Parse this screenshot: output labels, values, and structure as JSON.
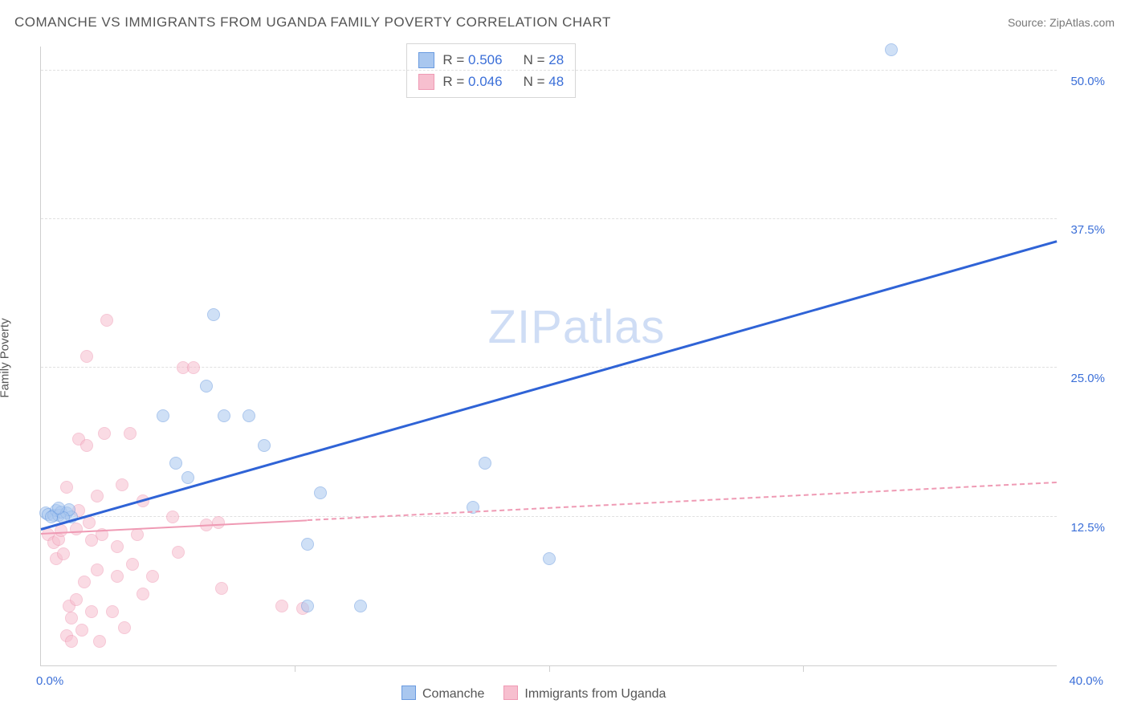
{
  "header": {
    "title": "COMANCHE VS IMMIGRANTS FROM UGANDA FAMILY POVERTY CORRELATION CHART",
    "source_prefix": "Source: ",
    "source_link": "ZipAtlas.com"
  },
  "ylabel": "Family Poverty",
  "watermark": {
    "part1": "ZIP",
    "part2": "atlas"
  },
  "chart": {
    "type": "scatter",
    "background_color": "#ffffff",
    "grid_color": "#e0e0e0",
    "axis_color": "#cfcfcf",
    "tick_label_color": "#3b6fd8",
    "xlim": [
      0,
      40
    ],
    "ylim": [
      0,
      52
    ],
    "xticks": [
      0,
      40
    ],
    "xtick_marks_only": [
      10,
      20,
      30
    ],
    "xtick_labels": [
      "0.0%",
      "40.0%"
    ],
    "yticks": [
      12.5,
      25.0,
      37.5,
      50.0
    ],
    "ytick_labels": [
      "12.5%",
      "25.0%",
      "37.5%",
      "50.0%"
    ],
    "series": [
      {
        "id": "comanche",
        "name": "Comanche",
        "color_fill": "#a9c7ef",
        "color_stroke": "#6a9be0",
        "marker_radius": 8,
        "fill_opacity": 0.55,
        "R": "0.506",
        "N": "28",
        "trend": {
          "style": "solid",
          "color": "#2f63d6",
          "width": 3,
          "x1": 0,
          "y1": 11.3,
          "x2": 40,
          "y2": 35.5,
          "dash_after_x": null
        },
        "points": [
          [
            0.2,
            12.8
          ],
          [
            0.3,
            12.7
          ],
          [
            0.5,
            12.6
          ],
          [
            0.6,
            13.0
          ],
          [
            0.7,
            12.6
          ],
          [
            0.8,
            12.9
          ],
          [
            0.4,
            12.5
          ],
          [
            1.0,
            12.8
          ],
          [
            1.2,
            12.5
          ],
          [
            1.1,
            13.1
          ],
          [
            0.9,
            12.4
          ],
          [
            0.7,
            13.2
          ],
          [
            5.8,
            15.8
          ],
          [
            4.8,
            21.0
          ],
          [
            5.3,
            17.0
          ],
          [
            6.5,
            23.5
          ],
          [
            7.2,
            21.0
          ],
          [
            8.2,
            21.0
          ],
          [
            6.8,
            29.5
          ],
          [
            8.8,
            18.5
          ],
          [
            10.5,
            10.2
          ],
          [
            10.5,
            5.0
          ],
          [
            11.0,
            14.5
          ],
          [
            12.6,
            5.0
          ],
          [
            17.0,
            13.3
          ],
          [
            17.5,
            17.0
          ],
          [
            20.0,
            9.0
          ],
          [
            33.5,
            51.7
          ]
        ]
      },
      {
        "id": "uganda",
        "name": "Immigrants from Uganda",
        "color_fill": "#f7bfcf",
        "color_stroke": "#ef9ab4",
        "marker_radius": 8,
        "fill_opacity": 0.55,
        "R": "0.046",
        "N": "48",
        "trend": {
          "style": "dashed_after",
          "color": "#ef9ab4",
          "width": 2,
          "x1": 0,
          "y1": 11.0,
          "x2": 40,
          "y2": 15.3,
          "dash_after_x": 10.5
        },
        "points": [
          [
            0.3,
            11.0
          ],
          [
            0.5,
            10.3
          ],
          [
            0.6,
            9.0
          ],
          [
            0.7,
            10.6
          ],
          [
            0.8,
            11.3
          ],
          [
            0.9,
            9.4
          ],
          [
            1.0,
            15.0
          ],
          [
            1.0,
            2.5
          ],
          [
            1.1,
            5.0
          ],
          [
            1.2,
            4.0
          ],
          [
            1.2,
            2.0
          ],
          [
            1.4,
            5.5
          ],
          [
            1.4,
            11.5
          ],
          [
            1.5,
            19.0
          ],
          [
            1.5,
            13.0
          ],
          [
            1.6,
            3.0
          ],
          [
            1.7,
            7.0
          ],
          [
            1.8,
            18.5
          ],
          [
            1.8,
            26.0
          ],
          [
            1.9,
            12.0
          ],
          [
            2.0,
            10.5
          ],
          [
            2.0,
            4.5
          ],
          [
            2.2,
            14.2
          ],
          [
            2.2,
            8.0
          ],
          [
            2.3,
            2.0
          ],
          [
            2.4,
            11.0
          ],
          [
            2.5,
            19.5
          ],
          [
            2.6,
            29.0
          ],
          [
            2.8,
            4.5
          ],
          [
            3.0,
            7.5
          ],
          [
            3.0,
            10.0
          ],
          [
            3.2,
            15.2
          ],
          [
            3.3,
            3.2
          ],
          [
            3.5,
            19.5
          ],
          [
            3.6,
            8.5
          ],
          [
            3.8,
            11.0
          ],
          [
            4.0,
            13.8
          ],
          [
            4.0,
            6.0
          ],
          [
            4.4,
            7.5
          ],
          [
            5.2,
            12.5
          ],
          [
            5.4,
            9.5
          ],
          [
            5.6,
            25.0
          ],
          [
            6.0,
            25.0
          ],
          [
            6.5,
            11.8
          ],
          [
            7.0,
            12.0
          ],
          [
            7.1,
            6.5
          ],
          [
            9.5,
            5.0
          ],
          [
            10.3,
            4.8
          ]
        ]
      }
    ]
  },
  "legend_stats": {
    "R_label": "R =",
    "N_label": "N ="
  },
  "legend_bottom": {
    "items": [
      "Comanche",
      "Immigrants from Uganda"
    ]
  }
}
